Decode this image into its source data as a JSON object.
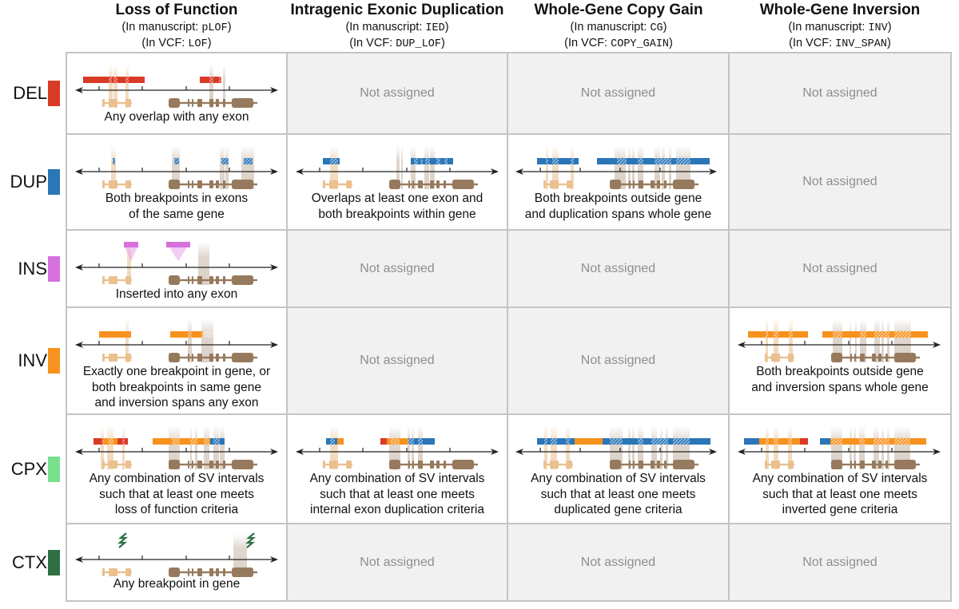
{
  "columns": [
    {
      "title": "Loss of Function",
      "manuscript_prefix": "(In manuscript: ",
      "manuscript_code": "pLOF",
      "vcf_prefix": "(In VCF: ",
      "vcf_code": "LOF",
      "suffix": ")"
    },
    {
      "title": "Intragenic Exonic Duplication",
      "manuscript_prefix": "(In manuscript: ",
      "manuscript_code": "IED",
      "vcf_prefix": "(In VCF: ",
      "vcf_code": "DUP_LOF",
      "suffix": ")"
    },
    {
      "title": "Whole-Gene Copy Gain",
      "manuscript_prefix": "(In manuscript: ",
      "manuscript_code": "CG",
      "vcf_prefix": "(In VCF: ",
      "vcf_code": "COPY_GAIN",
      "suffix": ")"
    },
    {
      "title": "Whole-Gene Inversion",
      "manuscript_prefix": "(In manuscript: ",
      "manuscript_code": "INV",
      "vcf_prefix": "(In VCF: ",
      "vcf_code": "INV_SPAN",
      "suffix": ")"
    }
  ],
  "colors": {
    "DEL": "#d93a26",
    "DUP": "#2a76b7",
    "INS": "#d671de",
    "INV": "#f7921e",
    "CPX": "#79e08e",
    "CTX": "#2e7042",
    "gene_light": "#eac08f",
    "gene_dark": "#977a5d",
    "grid": "#c4c4c4",
    "not_assigned_bg": "#f1f1f1",
    "not_assigned_text": "#8e8e8e"
  },
  "not_assigned_label": "Not assigned",
  "rows": [
    {
      "type": "DEL",
      "cells": [
        {
          "assigned": true,
          "desc": [
            "Any overlap with any exon"
          ]
        },
        {
          "assigned": false
        },
        {
          "assigned": false
        },
        {
          "assigned": false
        }
      ]
    },
    {
      "type": "DUP",
      "cells": [
        {
          "assigned": true,
          "desc": [
            "Both breakpoints in exons",
            "of the same gene"
          ]
        },
        {
          "assigned": true,
          "desc": [
            "Overlaps at least one exon and",
            "both breakpoints within gene"
          ]
        },
        {
          "assigned": true,
          "desc": [
            "Both breakpoints outside gene",
            "and duplication spans whole gene"
          ]
        },
        {
          "assigned": false
        }
      ]
    },
    {
      "type": "INS",
      "cells": [
        {
          "assigned": true,
          "desc": [
            "Inserted into any exon"
          ]
        },
        {
          "assigned": false
        },
        {
          "assigned": false
        },
        {
          "assigned": false
        }
      ]
    },
    {
      "type": "INV",
      "cells": [
        {
          "assigned": true,
          "desc": [
            "Exactly one breakpoint in gene, or",
            "both breakpoints in same gene",
            "and inversion spans any exon"
          ]
        },
        {
          "assigned": false
        },
        {
          "assigned": false
        },
        {
          "assigned": true,
          "desc": [
            "Both breakpoints outside gene",
            "and inversion spans whole gene"
          ]
        }
      ]
    },
    {
      "type": "CPX",
      "cells": [
        {
          "assigned": true,
          "desc": [
            "Any combination of SV intervals",
            "such that at least one meets",
            "loss of function criteria"
          ]
        },
        {
          "assigned": true,
          "desc": [
            "Any combination of SV intervals",
            "such that at least one meets",
            "internal exon duplication criteria"
          ]
        },
        {
          "assigned": true,
          "desc": [
            "Any combination of SV intervals",
            "such that at least one meets",
            "duplicated gene criteria"
          ]
        },
        {
          "assigned": true,
          "desc": [
            "Any combination of SV intervals",
            "such that at least one meets",
            "inverted gene criteria"
          ]
        }
      ]
    },
    {
      "type": "CTX",
      "cells": [
        {
          "assigned": true,
          "desc": [
            "Any breakpoint in gene"
          ]
        },
        {
          "assigned": false
        },
        {
          "assigned": false
        },
        {
          "assigned": false
        }
      ]
    }
  ]
}
